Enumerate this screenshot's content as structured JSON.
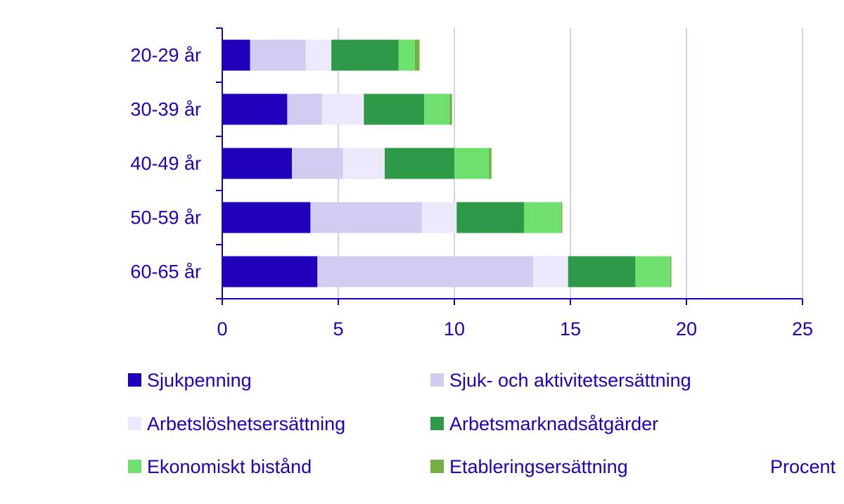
{
  "chart_data": {
    "type": "bar",
    "orientation": "horizontal",
    "stacked": true,
    "categories": [
      "20-29 år",
      "30-39 år",
      "40-49 år",
      "50-59 år",
      "60-65 år"
    ],
    "series": [
      {
        "name": "Sjukpenning",
        "color": "#2200bb",
        "values": [
          1.2,
          2.8,
          3.0,
          3.8,
          4.1
        ]
      },
      {
        "name": "Sjuk- och aktivitetsersättning",
        "color": "#d2ccf0",
        "values": [
          2.4,
          1.5,
          2.2,
          4.8,
          9.3
        ]
      },
      {
        "name": "Arbetslöshetsersättning",
        "color": "#ebe9fb",
        "values": [
          1.1,
          1.8,
          1.8,
          1.5,
          1.5
        ]
      },
      {
        "name": "Arbetsmarknadsåtgärder",
        "color": "#2e9946",
        "values": [
          2.9,
          2.6,
          3.0,
          2.9,
          2.9
        ]
      },
      {
        "name": "Ekonomiskt bistånd",
        "color": "#6ee06e",
        "values": [
          0.7,
          1.1,
          1.5,
          1.6,
          1.5
        ]
      },
      {
        "name": "Etableringsersättning",
        "color": "#72b043",
        "values": [
          0.2,
          0.1,
          0.1,
          0.05,
          0.05
        ]
      }
    ],
    "xlim": [
      0,
      25
    ],
    "xticks": [
      0,
      5,
      10,
      15,
      20,
      25
    ],
    "xlabel": "Procent",
    "grid": "vertical",
    "legend": "bottom",
    "axis_color": "#2200bb",
    "grid_color": "#d4d0f2"
  }
}
